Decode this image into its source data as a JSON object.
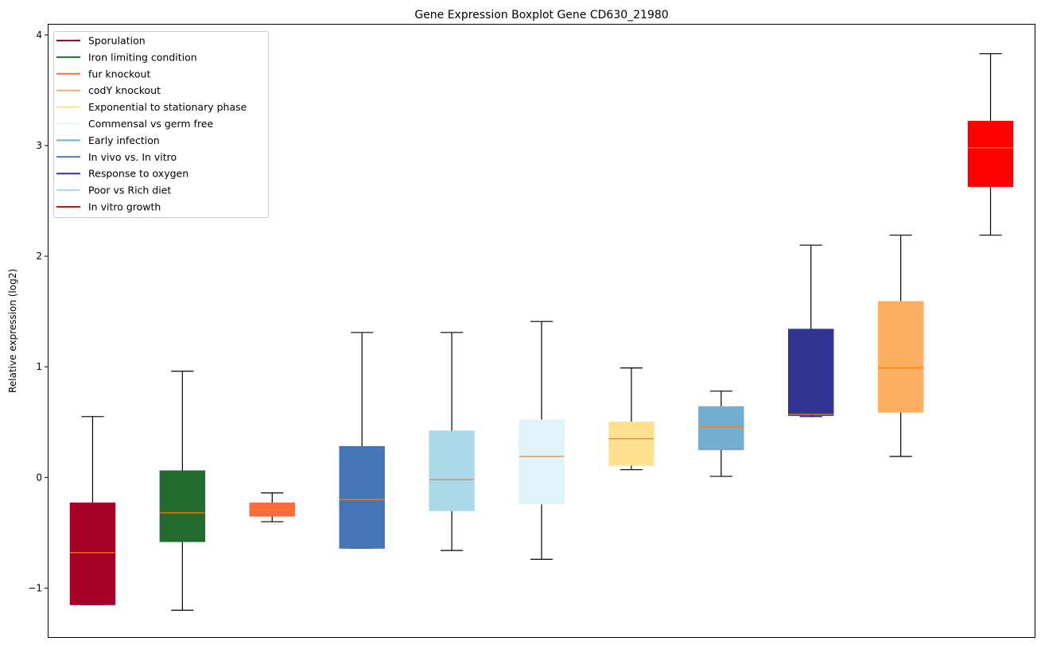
{
  "chart_data": {
    "type": "boxplot",
    "title": "Gene Expression Boxplot Gene CD630_21980",
    "xlabel": "",
    "ylabel": "Relative expression (log2)",
    "ylim": [
      -1.45,
      4.1
    ],
    "yticks": [
      -1,
      0,
      1,
      2,
      3,
      4
    ],
    "ytick_labels": [
      "−1",
      "0",
      "1",
      "2",
      "3",
      "4"
    ],
    "grid": false,
    "legend_position": "top-left",
    "median_color": "#ff7f0e",
    "series": [
      {
        "name": "Sporulation",
        "color": "#a50026",
        "whisker_low": -1.15,
        "q1": -1.15,
        "median": -0.68,
        "q3": -0.23,
        "whisker_high": 0.55
      },
      {
        "name": "Iron limiting condition",
        "color": "#246b2f",
        "whisker_low": -1.2,
        "q1": -0.58,
        "median": -0.32,
        "q3": 0.06,
        "whisker_high": 0.96
      },
      {
        "name": "fur knockout",
        "color": "#f46d43",
        "whisker_low": -0.4,
        "q1": -0.35,
        "median": -0.29,
        "q3": -0.23,
        "whisker_high": -0.14
      },
      {
        "name": "In vivo vs. In vitro",
        "color": "#4575b4",
        "whisker_low": -0.64,
        "q1": -0.64,
        "median": -0.2,
        "q3": 0.28,
        "whisker_high": 1.31
      },
      {
        "name": "Poor vs Rich diet",
        "color": "#abd9e9",
        "whisker_low": -0.66,
        "q1": -0.3,
        "median": -0.02,
        "q3": 0.42,
        "whisker_high": 1.31
      },
      {
        "name": "Commensal vs germ free",
        "color": "#e0f3f8",
        "whisker_low": -0.74,
        "q1": -0.24,
        "median": 0.19,
        "q3": 0.52,
        "whisker_high": 1.41
      },
      {
        "name": "Exponential to stationary phase",
        "color": "#fee090",
        "whisker_low": 0.07,
        "q1": 0.11,
        "median": 0.35,
        "q3": 0.5,
        "whisker_high": 0.99
      },
      {
        "name": "Early infection",
        "color": "#74add1",
        "whisker_low": 0.01,
        "q1": 0.25,
        "median": 0.46,
        "q3": 0.64,
        "whisker_high": 0.78
      },
      {
        "name": "Response to oxygen",
        "color": "#313695",
        "whisker_low": 0.55,
        "q1": 0.56,
        "median": 0.57,
        "q3": 1.34,
        "whisker_high": 2.1
      },
      {
        "name": "codY knockout",
        "color": "#fdae61",
        "whisker_low": 0.19,
        "q1": 0.59,
        "median": 0.99,
        "q3": 1.59,
        "whisker_high": 2.19
      },
      {
        "name": "In vitro growth",
        "color": "#ff0000",
        "whisker_low": 2.19,
        "q1": 2.63,
        "median": 2.98,
        "q3": 3.22,
        "whisker_high": 3.83
      }
    ],
    "legend": [
      {
        "label": "Sporulation",
        "color": "#a50026"
      },
      {
        "label": "Iron limiting condition",
        "color": "#246b2f"
      },
      {
        "label": "fur knockout",
        "color": "#f46d43"
      },
      {
        "label": "codY knockout",
        "color": "#fdae61"
      },
      {
        "label": "Exponential to stationary phase",
        "color": "#fee090"
      },
      {
        "label": "Commensal vs germ free",
        "color": "#e0f3f8"
      },
      {
        "label": "Early infection",
        "color": "#74add1"
      },
      {
        "label": "In vivo vs. In vitro",
        "color": "#4575b4"
      },
      {
        "label": "Response to oxygen",
        "color": "#313695"
      },
      {
        "label": "Poor vs Rich diet",
        "color": "#abd9e9"
      },
      {
        "label": "In vitro growth",
        "color": "#ff0000"
      }
    ]
  }
}
